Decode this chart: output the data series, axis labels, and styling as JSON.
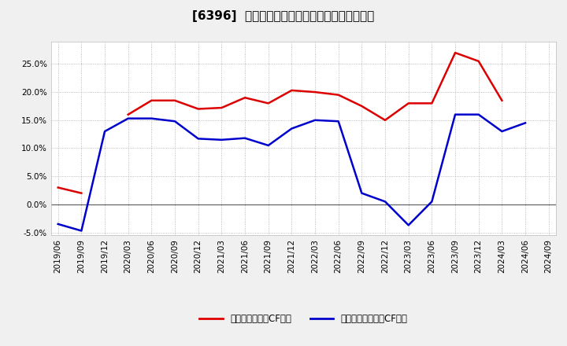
{
  "title": "[6396]  有利子負債キャッシュフロー比率の推移",
  "x_labels": [
    "2019/06",
    "2019/09",
    "2019/12",
    "2020/03",
    "2020/06",
    "2020/09",
    "2020/12",
    "2021/03",
    "2021/06",
    "2021/09",
    "2021/12",
    "2022/03",
    "2022/06",
    "2022/09",
    "2022/12",
    "2023/03",
    "2023/06",
    "2023/09",
    "2023/12",
    "2024/03",
    "2024/06",
    "2024/09"
  ],
  "red_values": [
    3.0,
    2.0,
    null,
    16.0,
    18.5,
    18.5,
    17.0,
    17.2,
    19.0,
    18.0,
    20.3,
    20.0,
    19.5,
    17.5,
    15.0,
    18.0,
    18.0,
    27.0,
    25.5,
    18.5,
    null,
    null
  ],
  "blue_values": [
    -3.5,
    -4.7,
    13.0,
    15.3,
    15.3,
    14.8,
    11.7,
    11.5,
    11.8,
    10.5,
    13.5,
    15.0,
    14.8,
    2.0,
    0.5,
    -3.7,
    0.5,
    16.0,
    16.0,
    13.0,
    14.5,
    null
  ],
  "red_label": "有利子負債営業CF比率",
  "blue_label": "有利子負債フリーCF比率",
  "ylim": [
    -5.5,
    29.0
  ],
  "yticks": [
    -5.0,
    0.0,
    5.0,
    10.0,
    15.0,
    20.0,
    25.0
  ],
  "bg_color": "#f0f0f0",
  "plot_bg_color": "#ffffff",
  "grid_color": "#aaaaaa",
  "red_color": "#dd0000",
  "blue_color": "#0000cc",
  "title_fontsize": 11,
  "tick_fontsize": 7.5,
  "legend_fontsize": 8.5
}
